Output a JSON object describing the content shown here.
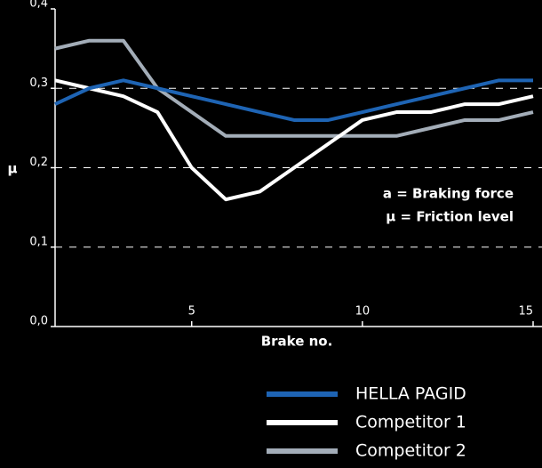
{
  "chart_data": {
    "type": "line",
    "y_label": "μ",
    "x_label": "Brake no.",
    "annotations": [
      "a = Braking force",
      "μ = Friction level"
    ],
    "x": [
      1,
      2,
      3,
      4,
      5,
      6,
      7,
      8,
      9,
      10,
      11,
      12,
      13,
      14,
      15
    ],
    "series": [
      {
        "name": "HELLA PAGID",
        "color": "#1e64b4",
        "values": [
          0.28,
          0.3,
          0.31,
          0.3,
          0.29,
          0.28,
          0.27,
          0.26,
          0.26,
          0.27,
          0.28,
          0.29,
          0.3,
          0.31,
          0.31
        ]
      },
      {
        "name": "Competitor 1",
        "color": "#ffffff",
        "values": [
          0.31,
          0.3,
          0.29,
          0.27,
          0.2,
          0.16,
          0.17,
          0.2,
          0.23,
          0.26,
          0.27,
          0.27,
          0.28,
          0.28,
          0.29
        ]
      },
      {
        "name": "Competitor 2",
        "color": "#a3adb8",
        "values": [
          0.35,
          0.36,
          0.36,
          0.3,
          0.27,
          0.24,
          0.24,
          0.24,
          0.24,
          0.24,
          0.24,
          0.25,
          0.26,
          0.26,
          0.27
        ]
      }
    ],
    "xlim": [
      1,
      15
    ],
    "xticks": [
      5,
      10,
      15
    ],
    "ylim": [
      0,
      0.4
    ],
    "yticks": [
      {
        "value": 0,
        "label": "0,0"
      },
      {
        "value": 0.1,
        "label": "0,1"
      },
      {
        "value": 0.2,
        "label": "0,2"
      },
      {
        "value": 0.3,
        "label": "0,3"
      },
      {
        "value": 0.4,
        "label": "0,4"
      }
    ],
    "grid": true
  }
}
